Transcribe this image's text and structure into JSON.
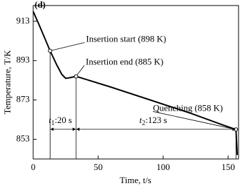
{
  "chart_data": {
    "type": "line",
    "panel_label": "(d)",
    "x_label": "Time, t/s",
    "y_label": "Temperature, T/K",
    "xlim": [
      0,
      158
    ],
    "xticks": [
      0,
      50,
      100,
      150
    ],
    "ylim": [
      843,
      921
    ],
    "yticks": [
      853,
      873,
      893,
      913
    ],
    "series": [
      {
        "name": "Temperature",
        "color": "#000000",
        "x": [
          0,
          5,
          13,
          18,
          22,
          25,
          28,
          33,
          60,
          90,
          120,
          145,
          156,
          156.5,
          157
        ],
        "values": [
          918,
          910.5,
          898,
          891,
          886,
          884,
          884.3,
          885,
          879.5,
          873,
          866.5,
          860.5,
          858,
          852,
          845
        ]
      }
    ],
    "annotations": [
      {
        "text": "Insertion start (898 K)",
        "x": 13,
        "y": 898
      },
      {
        "text": "Insertion end (885 K)",
        "x": 33,
        "y": 885
      },
      {
        "text": "Quenching (858 K)",
        "x": 156,
        "y": 858
      }
    ],
    "intervals": [
      {
        "symbol": "t",
        "sub": "1",
        "text": ":20 s",
        "from": 13,
        "to": 33
      },
      {
        "symbol": "t",
        "sub": "2",
        "text": ":123 s",
        "from": 33,
        "to": 156
      }
    ]
  }
}
